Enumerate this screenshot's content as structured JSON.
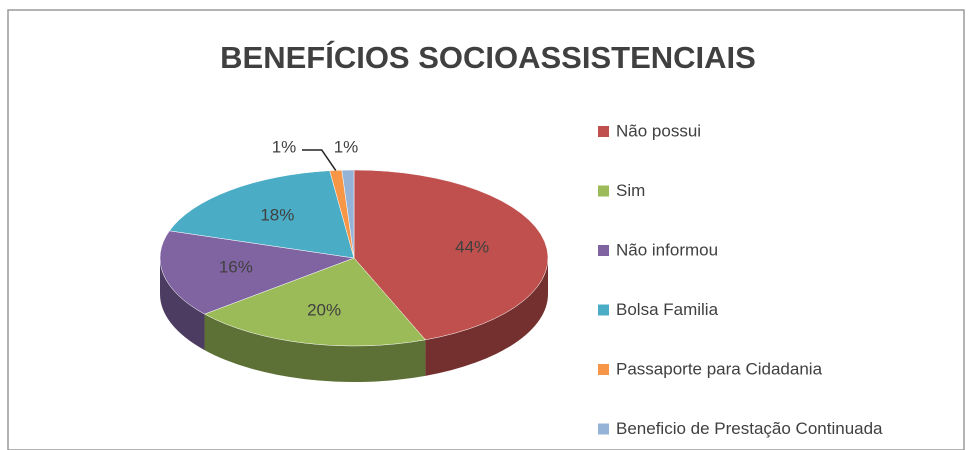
{
  "chart_data": {
    "type": "pie",
    "title": "BENEFÍCIOS SOCIOASSISTENCIAIS",
    "categories": [
      "Não possui",
      "Sim",
      "Não informou",
      "Bolsa Familia",
      "Passaporte para Cidadania",
      "Beneficio de Prestação Continuada"
    ],
    "values": [
      44,
      20,
      16,
      18,
      1,
      1
    ],
    "value_labels": [
      "44%",
      "20%",
      "16%",
      "18%",
      "1%",
      "1%"
    ],
    "colors": [
      "#c0504d",
      "#9bbb59",
      "#8064a2",
      "#4bacc6",
      "#f79646",
      "#95b3d7"
    ],
    "legend": "right"
  }
}
